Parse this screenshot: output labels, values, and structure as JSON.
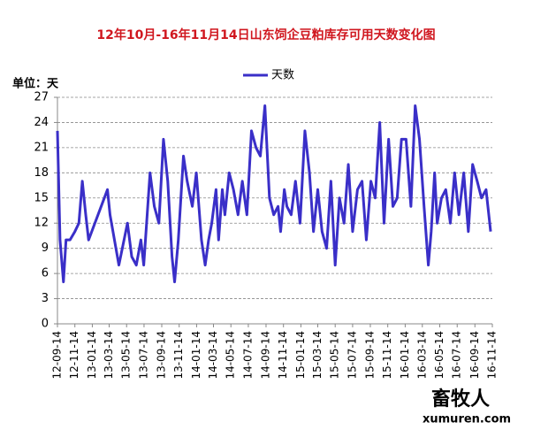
{
  "chart_data": {
    "type": "line",
    "title": "12年10月-16年11月14日山东饲企豆粕库存可用天数变化图",
    "y_label": "单位：天",
    "x": [
      "12-09-14",
      "12-09-23",
      "12-10-05",
      "12-10-14",
      "12-10-28",
      "12-11-14",
      "12-11-28",
      "12-12-10",
      "12-12-22",
      "13-01-01",
      "13-03-08",
      "13-03-17",
      "13-04-17",
      "13-05-17",
      "13-06-01",
      "13-06-17",
      "13-07-03",
      "13-07-13",
      "13-08-04",
      "13-08-19",
      "13-09-04",
      "13-09-20",
      "13-10-05",
      "13-10-20",
      "13-10-29",
      "13-11-11",
      "13-11-29",
      "13-12-12",
      "13-12-30",
      "14-01-13",
      "14-01-31",
      "14-02-13",
      "14-02-25",
      "14-03-08",
      "14-03-23",
      "14-04-01",
      "14-04-14",
      "14-04-23",
      "14-05-08",
      "14-05-23",
      "14-06-08",
      "14-06-23",
      "14-07-09",
      "14-07-25",
      "14-08-10",
      "14-08-25",
      "14-09-10",
      "14-09-26",
      "14-10-11",
      "14-10-26",
      "14-11-04",
      "14-11-17",
      "14-11-26",
      "14-12-11",
      "14-12-26",
      "15-01-11",
      "15-01-28",
      "15-02-13",
      "15-02-27",
      "15-03-14",
      "15-03-29",
      "15-04-14",
      "15-04-29",
      "15-05-14",
      "15-05-29",
      "15-06-14",
      "15-06-29",
      "15-07-14",
      "15-07-31",
      "15-08-16",
      "15-08-31",
      "15-09-16",
      "15-10-01",
      "15-10-17",
      "15-11-01",
      "15-11-17",
      "15-12-02",
      "15-12-17",
      "16-01-01",
      "16-01-17",
      "16-02-03",
      "16-02-18",
      "16-03-04",
      "16-03-20",
      "16-04-04",
      "16-04-14",
      "16-04-26",
      "16-05-05",
      "16-05-20",
      "16-06-04",
      "16-06-20",
      "16-07-05",
      "16-07-20",
      "16-08-06",
      "16-08-22",
      "16-09-06",
      "16-09-22",
      "16-10-07",
      "16-10-23",
      "16-11-08"
    ],
    "series": [
      {
        "name": "天数",
        "color": "#3a2fc8",
        "values": [
          23,
          10,
          5,
          10,
          10,
          11,
          12,
          17,
          13,
          10,
          16,
          13,
          7,
          12,
          8,
          7,
          10,
          7,
          18,
          14,
          12,
          22,
          17,
          8,
          5,
          10,
          20,
          17,
          14,
          18,
          10,
          7,
          10,
          12,
          16,
          10,
          16,
          13,
          18,
          16,
          13,
          17,
          13,
          23,
          21,
          20,
          26,
          15,
          13,
          14,
          11,
          16,
          14,
          13,
          17,
          12,
          23,
          18,
          11,
          16,
          11,
          9,
          17,
          7,
          15,
          12,
          19,
          11,
          16,
          17,
          10,
          17,
          15,
          24,
          12,
          22,
          14,
          15,
          22,
          22,
          14,
          26,
          22,
          14,
          7,
          11,
          18,
          12,
          15,
          16,
          12,
          18,
          13,
          18,
          11,
          19,
          17,
          15,
          16,
          11
        ]
      }
    ],
    "xlim": [
      "12-09-14",
      "16-11-14"
    ],
    "xticks": [
      "12-09-14",
      "12-11-14",
      "13-01-14",
      "13-03-14",
      "13-05-14",
      "13-07-14",
      "13-09-14",
      "13-11-14",
      "14-01-14",
      "14-03-14",
      "14-05-14",
      "14-07-14",
      "14-09-14",
      "14-11-14",
      "15-01-14",
      "15-03-14",
      "15-05-14",
      "15-07-14",
      "15-09-14",
      "15-11-14",
      "16-01-14",
      "16-03-14",
      "16-05-14",
      "16-07-14",
      "16-09-14",
      "16-11-14"
    ],
    "ylim": [
      0,
      27
    ],
    "yticks": [
      0,
      3,
      6,
      9,
      12,
      15,
      18,
      21,
      24,
      27
    ],
    "grid": true
  },
  "logo": {
    "name": "畜牧人",
    "url": "xumuren.com"
  }
}
